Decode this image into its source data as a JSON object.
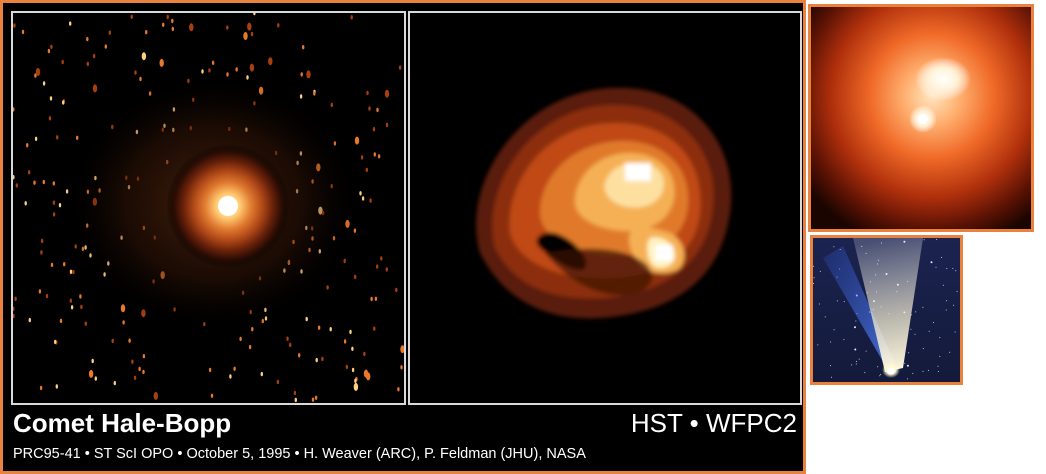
{
  "caption": {
    "title": "Comet Hale-Bopp",
    "instrument": "HST • WFPC2",
    "credit": "PRC95-41 • ST ScI OPO • October 5, 1995 • H. Weaver (ARC), P. Feldman (JHU), NASA"
  },
  "colors": {
    "frame_orange": "#e9813f",
    "panel_border": "#d9d9d9",
    "background": "#000000"
  }
}
